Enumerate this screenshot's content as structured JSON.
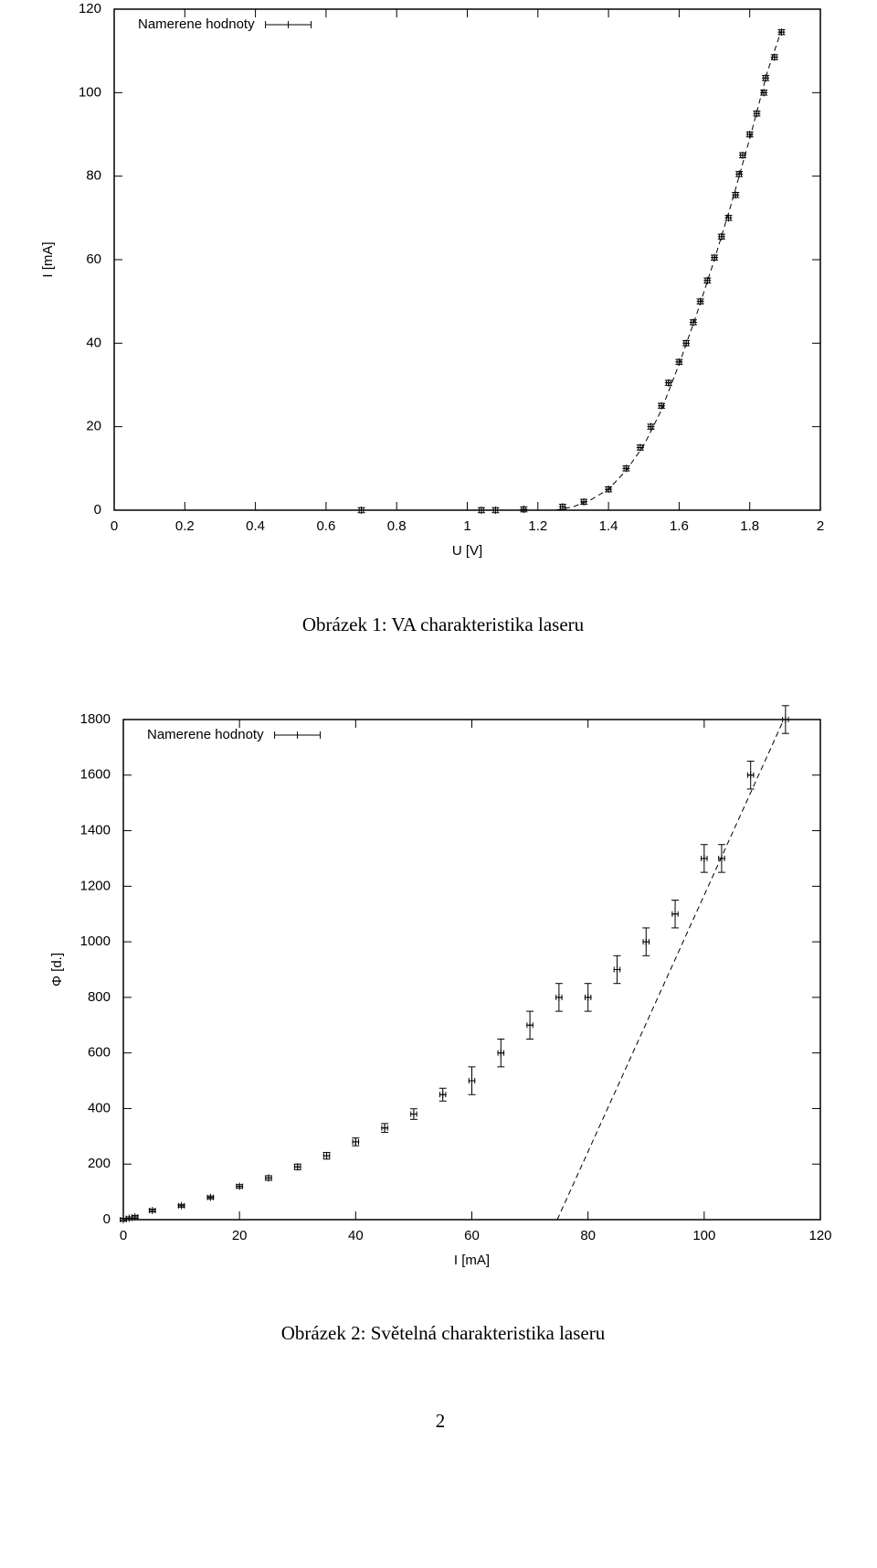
{
  "chart_data": [
    {
      "type": "scatter",
      "x_label": "U [V]",
      "y_label": "I [mA]",
      "xlim": [
        0,
        2
      ],
      "ylim": [
        0,
        120
      ],
      "xticks": [
        0,
        0.2,
        0.4,
        0.6,
        0.8,
        1,
        1.2,
        1.4,
        1.6,
        1.8,
        2
      ],
      "yticks": [
        0,
        20,
        40,
        60,
        80,
        100,
        120
      ],
      "legend": "top-left",
      "series": [
        {
          "name": "Namerene hodnoty",
          "color": "#000000",
          "xerr": 0.006,
          "yerr": 0.6,
          "x": [
            0.7,
            1.04,
            1.08,
            1.16,
            1.27,
            1.33,
            1.4,
            1.45,
            1.49,
            1.52,
            1.55,
            1.57,
            1.6,
            1.62,
            1.64,
            1.66,
            1.68,
            1.7,
            1.72,
            1.74,
            1.76,
            1.77,
            1.78,
            1.8,
            1.82,
            1.84,
            1.845,
            1.87,
            1.89
          ],
          "values": [
            0,
            0,
            0,
            0.2,
            0.8,
            2,
            5,
            10,
            15,
            20,
            25,
            30.5,
            35.5,
            40,
            45,
            50,
            55,
            60.5,
            65.5,
            70,
            75.5,
            80.5,
            85,
            90,
            95,
            100,
            103.5,
            108.5,
            114.5
          ]
        },
        {
          "type": "line",
          "color": "#000000",
          "x": [
            1.25,
            1.3,
            1.35,
            1.4,
            1.45,
            1.5,
            1.55,
            1.6,
            1.65,
            1.7,
            1.75,
            1.8,
            1.85,
            1.89
          ],
          "values": [
            0,
            0.8,
            2.5,
            5,
            9.5,
            15.5,
            24,
            35,
            47,
            60,
            74,
            89,
            105,
            115
          ]
        }
      ]
    },
    {
      "type": "scatter",
      "x_label": "I [mA]",
      "y_label": "Φ [d.]",
      "xlim": [
        0,
        120
      ],
      "ylim": [
        0,
        1800
      ],
      "xticks": [
        0,
        20,
        40,
        60,
        80,
        100,
        120
      ],
      "yticks": [
        0,
        200,
        400,
        600,
        800,
        1000,
        1200,
        1400,
        1600,
        1800
      ],
      "legend": "top-left",
      "series": [
        {
          "name": "Namerene hodnoty",
          "color": "#000000",
          "xerr": 0.5,
          "x": [
            0,
            1,
            2,
            5,
            10,
            15,
            20,
            25,
            30,
            35,
            40,
            45,
            50,
            55,
            60,
            65,
            70,
            75,
            80,
            85,
            90,
            95,
            100,
            103,
            108,
            114
          ],
          "values": [
            0,
            5,
            10,
            33,
            50,
            80,
            120,
            150,
            190,
            230,
            280,
            330,
            380,
            450,
            500,
            600,
            700,
            800,
            800,
            900,
            1000,
            1100,
            1300,
            1300,
            1600,
            1800
          ],
          "yerr": [
            5,
            5,
            5,
            5,
            5,
            5,
            6,
            8,
            10,
            12,
            14,
            16,
            19,
            23,
            50,
            50,
            50,
            50,
            50,
            50,
            50,
            50,
            50,
            50,
            50,
            50
          ]
        },
        {
          "type": "line",
          "color": "#000000",
          "x": [
            74.7,
            113.7
          ],
          "values": [
            0,
            1800
          ]
        }
      ]
    }
  ],
  "captions": [
    "Obrázek 1: VA charakteristika laseru",
    "Obrázek 2: Světelná charakteristika laseru"
  ],
  "page_number": "2"
}
